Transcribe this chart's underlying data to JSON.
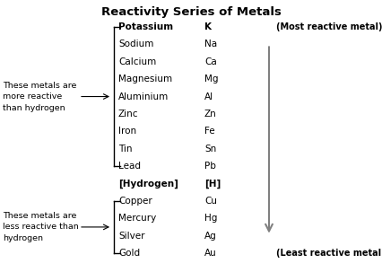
{
  "title": "Reactivity Series of Metals",
  "metals_above": [
    [
      "Potassium",
      "K",
      true
    ],
    [
      "Sodium",
      "Na",
      false
    ],
    [
      "Calcium",
      "Ca",
      false
    ],
    [
      "Magnesium",
      "Mg",
      false
    ],
    [
      "Aluminium",
      "Al",
      false
    ],
    [
      "Zinc",
      "Zn",
      false
    ],
    [
      "Iron",
      "Fe",
      false
    ],
    [
      "Tin",
      "Sn",
      false
    ],
    [
      "Lead",
      "Pb",
      false
    ]
  ],
  "hydrogen": [
    "[Hydrogen]",
    "[H]"
  ],
  "metals_below": [
    [
      "Copper",
      "Cu"
    ],
    [
      "Mercury",
      "Hg"
    ],
    [
      "Silver",
      "Ag"
    ],
    [
      "Gold",
      "Au"
    ]
  ],
  "label_above": "These metals are\nmore reactive\nthan hydrogen",
  "label_below": "These metals are\nless reactive than\nhydrogen",
  "most_reactive": "(Most reactive metal)",
  "least_reactive": "(Least reactive metal)",
  "bg_color": "#ffffff",
  "text_color": "#000000",
  "arrow_color": "#808080"
}
